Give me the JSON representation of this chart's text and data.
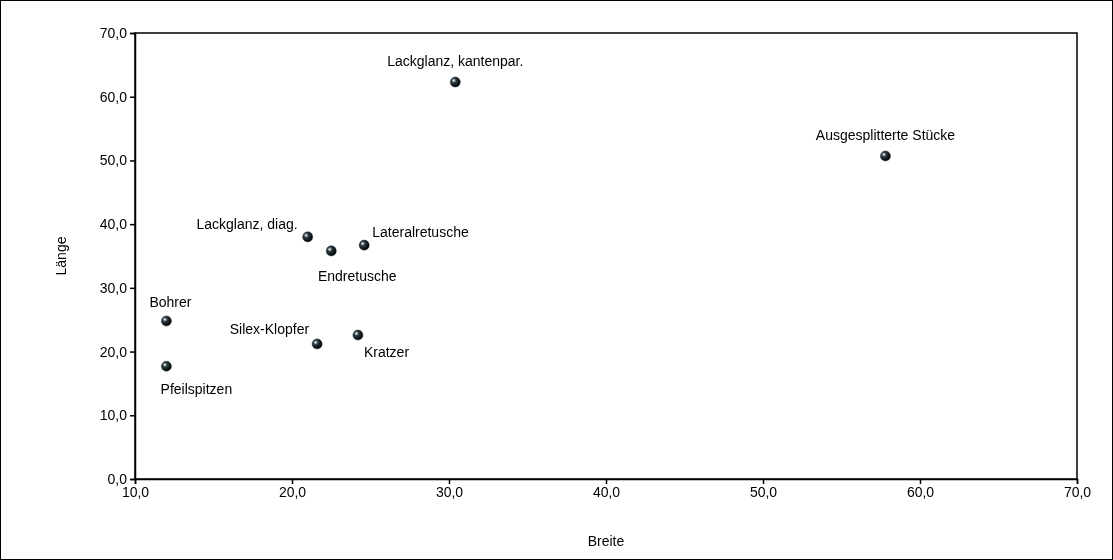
{
  "chart_data": {
    "type": "scatter",
    "xlabel": "Breite",
    "ylabel": "Länge",
    "xlim": [
      10,
      70
    ],
    "ylim": [
      0,
      70
    ],
    "xticks": [
      {
        "value": 10,
        "label": "10,0"
      },
      {
        "value": 20,
        "label": "20,0"
      },
      {
        "value": 30,
        "label": "30,0"
      },
      {
        "value": 40,
        "label": "40,0"
      },
      {
        "value": 50,
        "label": "50,0"
      },
      {
        "value": 60,
        "label": "60,0"
      },
      {
        "value": 70,
        "label": "70,0"
      }
    ],
    "yticks": [
      {
        "value": 0,
        "label": "0,0"
      },
      {
        "value": 10,
        "label": "10,0"
      },
      {
        "value": 20,
        "label": "20,0"
      },
      {
        "value": 30,
        "label": "30,0"
      },
      {
        "value": 40,
        "label": "40,0"
      },
      {
        "value": 50,
        "label": "50,0"
      },
      {
        "value": 60,
        "label": "60,0"
      },
      {
        "value": 70,
        "label": "70,0"
      }
    ],
    "x": [
      30.4,
      57.8,
      21.0,
      22.5,
      24.6,
      12.0,
      12.0,
      21.6,
      24.2
    ],
    "values": [
      62.3,
      50.7,
      38.0,
      35.8,
      36.7,
      24.8,
      17.7,
      21.2,
      22.6
    ],
    "color": "#2a3a42",
    "marker": "circle",
    "grid": false,
    "annotations": [
      {
        "text": "Lackglanz, kantenpar.",
        "x": 30.4,
        "y": 62.3
      },
      {
        "text": "Ausgesplitterte Stücke",
        "x": 57.8,
        "y": 50.7
      },
      {
        "text": "Lackglanz, diag.",
        "x": 21.0,
        "y": 38.0
      },
      {
        "text": "Endretusche",
        "x": 22.5,
        "y": 35.8
      },
      {
        "text": "Lateralretusche",
        "x": 24.6,
        "y": 36.7
      },
      {
        "text": "Bohrer",
        "x": 12.0,
        "y": 24.8
      },
      {
        "text": "Pfeilspitzen",
        "x": 12.0,
        "y": 17.7
      },
      {
        "text": "Silex-Klopfer",
        "x": 21.6,
        "y": 21.2
      },
      {
        "text": "Kratzer",
        "x": 24.2,
        "y": 22.6
      }
    ]
  }
}
